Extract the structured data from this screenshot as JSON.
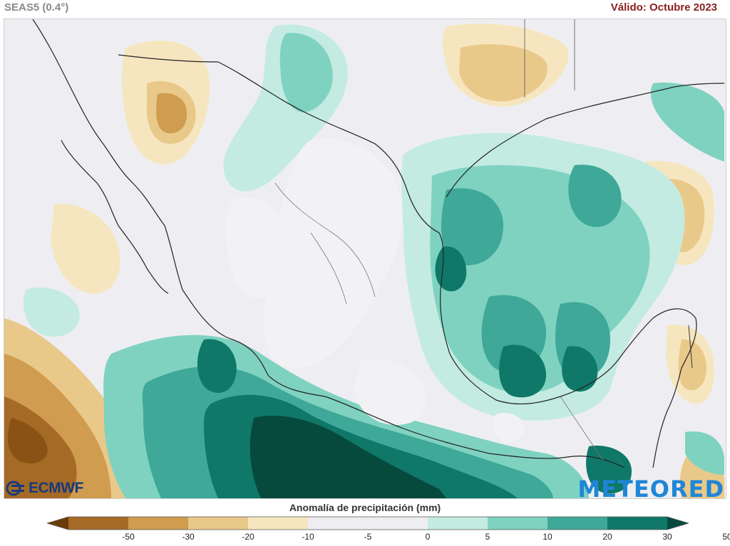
{
  "header": {
    "model": "SEAS5 (0.4°)",
    "valid": "Válido: Octubre 2023"
  },
  "legend": {
    "title": "Anomalía de precipitación (mm)",
    "ticks": [
      "-50",
      "-30",
      "-20",
      "-10",
      "-5",
      "0",
      "5",
      "10",
      "20",
      "30",
      "50"
    ],
    "colors": [
      "#6b3c0a",
      "#a56a25",
      "#cf9c50",
      "#e9c98a",
      "#f6e6bf",
      "#eeeef2",
      "#eeeef2",
      "#c3ebe2",
      "#7fd2c0",
      "#3fa898",
      "#0f7868",
      "#064a3e"
    ]
  },
  "logos": {
    "left": "ECMWF",
    "right": "METEORED"
  }
}
